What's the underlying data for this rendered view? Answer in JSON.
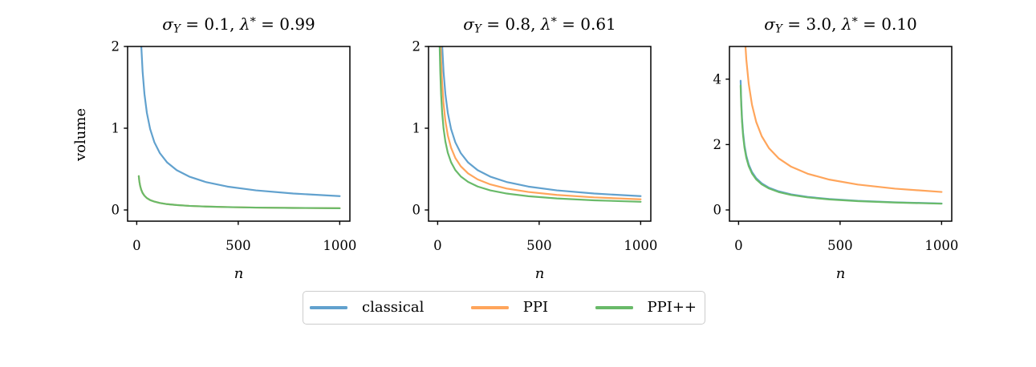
{
  "figure": {
    "background": "#ffffff",
    "ylabel": "volume",
    "xlabel": "n",
    "sigma_symbol": "σ",
    "sigma_subscript": "Y",
    "lambda_symbol": "λ",
    "lambda_superscript": "*",
    "equals": " = ",
    "comma_sep": ", "
  },
  "colors": {
    "classical": "#61a1ce",
    "PPI": "#ffa55b",
    "PPI++": "#69ba69",
    "axis": "#000000",
    "legend_border": "#cccccc"
  },
  "legend": {
    "position": "below",
    "entries": [
      {
        "label": "classical",
        "color_key": "classical"
      },
      {
        "label": "PPI",
        "color_key": "PPI"
      },
      {
        "label": "PPI++",
        "color_key": "PPI++"
      }
    ]
  },
  "chart_data": [
    {
      "type": "line",
      "title": "σ_Y = 0.1, λ* = 0.99",
      "sigma_value": "0.1",
      "lambda_value": "0.99",
      "xlabel": "n",
      "ylabel": "volume",
      "grid": false,
      "xlim": [
        -45,
        1050
      ],
      "ylim": [
        -0.137,
        2.0
      ],
      "xticks": [
        0,
        500,
        1000
      ],
      "yticks": [
        0,
        1,
        2
      ],
      "x": [
        10,
        13,
        17,
        22,
        29,
        38,
        50,
        66,
        87,
        114,
        150,
        197,
        259,
        340,
        447,
        587,
        771,
        1000
      ],
      "series": [
        {
          "name": "classical",
          "color_key": "classical",
          "y": [
            3.38,
            2.851,
            2.395,
            2.025,
            1.692,
            1.419,
            1.187,
            0.991,
            0.828,
            0.695,
            0.581,
            0.487,
            0.408,
            0.342,
            0.286,
            0.24,
            0.201,
            0.169
          ]
        },
        {
          "name": "PPI",
          "color_key": "PPI",
          "y": [
            0.414,
            0.349,
            0.293,
            0.248,
            0.207,
            0.174,
            0.145,
            0.121,
            0.102,
            0.085,
            0.071,
            0.06,
            0.05,
            0.042,
            0.035,
            0.029,
            0.025,
            0.021
          ]
        },
        {
          "name": "PPI++",
          "color_key": "PPI++",
          "y": [
            0.414,
            0.349,
            0.293,
            0.248,
            0.207,
            0.174,
            0.145,
            0.121,
            0.102,
            0.085,
            0.071,
            0.06,
            0.05,
            0.042,
            0.035,
            0.029,
            0.025,
            0.021
          ]
        }
      ]
    },
    {
      "type": "line",
      "title": "σ_Y = 0.8, λ* = 0.61",
      "sigma_value": "0.8",
      "lambda_value": "0.61",
      "xlabel": "n",
      "grid": false,
      "xlim": [
        -45,
        1050
      ],
      "ylim": [
        -0.137,
        2.0
      ],
      "xticks": [
        0,
        500,
        1000
      ],
      "yticks": [
        0,
        1,
        2
      ],
      "x": [
        10,
        13,
        17,
        22,
        29,
        38,
        50,
        66,
        87,
        114,
        150,
        197,
        259,
        340,
        447,
        587,
        771,
        1000
      ],
      "series": [
        {
          "name": "classical",
          "color_key": "classical",
          "y": [
            3.38,
            2.851,
            2.395,
            2.025,
            1.692,
            1.419,
            1.187,
            0.991,
            0.828,
            0.695,
            0.581,
            0.487,
            0.408,
            0.342,
            0.286,
            0.24,
            0.201,
            0.169
          ]
        },
        {
          "name": "PPI",
          "color_key": "PPI",
          "y": [
            2.597,
            2.19,
            1.84,
            1.556,
            1.3,
            1.09,
            0.912,
            0.762,
            0.636,
            0.534,
            0.447,
            0.374,
            0.313,
            0.262,
            0.22,
            0.184,
            0.154,
            0.13
          ]
        },
        {
          "name": "PPI++",
          "color_key": "PPI++",
          "y": [
            1.992,
            1.68,
            1.411,
            1.194,
            0.997,
            0.837,
            0.7,
            0.584,
            0.488,
            0.41,
            0.343,
            0.287,
            0.24,
            0.201,
            0.168,
            0.141,
            0.118,
            0.1
          ]
        }
      ]
    },
    {
      "type": "line",
      "title": "σ_Y = 3.0, λ* = 0.10",
      "sigma_value": "3.0",
      "lambda_value": "0.10",
      "xlabel": "n",
      "grid": false,
      "xlim": [
        -45,
        1050
      ],
      "ylim": [
        -0.343,
        5.0
      ],
      "xticks": [
        0,
        500,
        1000
      ],
      "yticks": [
        0,
        2,
        4
      ],
      "x": [
        10,
        13,
        17,
        22,
        29,
        38,
        50,
        66,
        87,
        114,
        150,
        197,
        259,
        340,
        447,
        587,
        771,
        1000
      ],
      "series": [
        {
          "name": "classical",
          "color_key": "classical",
          "y": [
            3.953,
            3.334,
            2.801,
            2.368,
            1.979,
            1.66,
            1.389,
            1.16,
            0.969,
            0.813,
            0.68,
            0.57,
            0.477,
            0.399,
            0.334,
            0.28,
            0.235,
            0.198
          ]
        },
        {
          "name": "PPI",
          "color_key": "PPI",
          "y": [
            10.97,
            9.251,
            7.771,
            6.571,
            5.491,
            4.606,
            3.853,
            3.217,
            2.688,
            2.255,
            1.887,
            1.58,
            1.323,
            1.108,
            0.928,
            0.777,
            0.651,
            0.55
          ]
        },
        {
          "name": "PPI++",
          "color_key": "PPI++",
          "y": [
            3.806,
            3.209,
            2.696,
            2.28,
            1.905,
            1.598,
            1.337,
            1.116,
            0.933,
            0.782,
            0.655,
            0.548,
            0.459,
            0.385,
            0.322,
            0.27,
            0.226,
            0.191
          ]
        }
      ]
    }
  ]
}
